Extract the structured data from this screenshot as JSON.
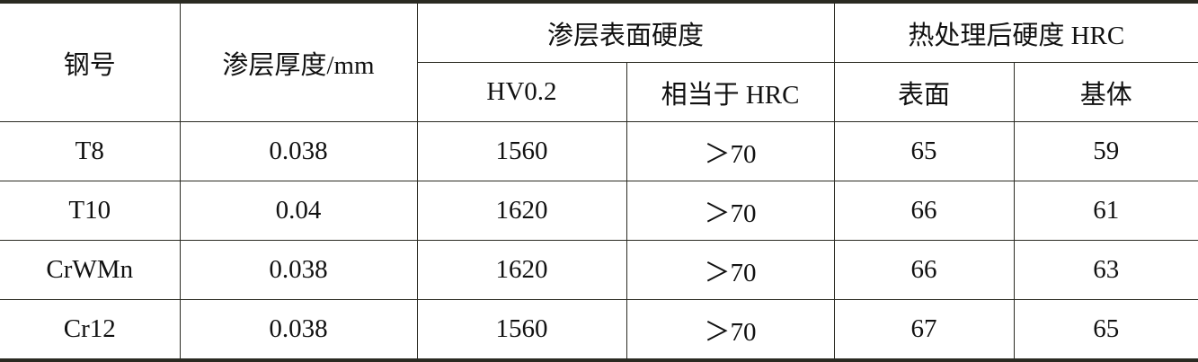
{
  "headers": {
    "steel": "钢号",
    "thickness": "渗层厚度/mm",
    "surface_hardness": "渗层表面硬度",
    "hv": "HV0.2",
    "hrc_equiv": "相当于 HRC",
    "after_heat": "热处理后硬度 HRC",
    "surface": "表面",
    "base": "基体"
  },
  "rows": [
    [
      "T8",
      "0.038",
      "1560",
      "＞70",
      "65",
      "59"
    ],
    [
      "T10",
      "0.04",
      "1620",
      "＞70",
      "66",
      "61"
    ],
    [
      "CrWMn",
      "0.038",
      "1620",
      "＞70",
      "66",
      "63"
    ],
    [
      "Cr12",
      "0.038",
      "1560",
      "＞70",
      "67",
      "65"
    ]
  ]
}
